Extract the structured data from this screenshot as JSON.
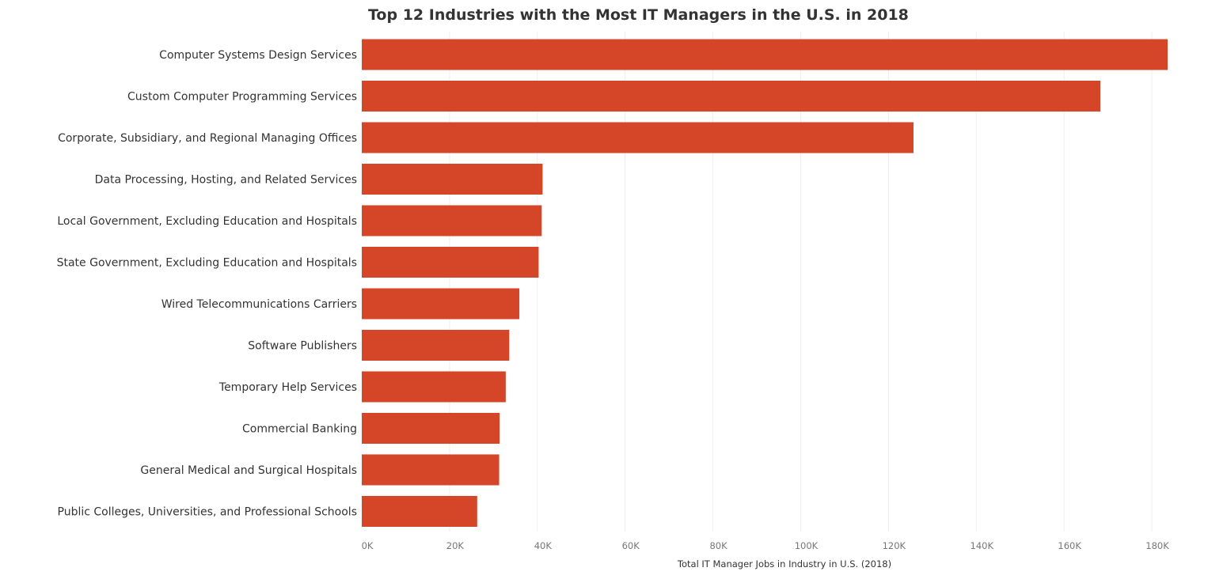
{
  "chart_data": {
    "type": "bar",
    "orientation": "horizontal",
    "title": "Top 12 Industries with the Most IT Managers in the U.S. in 2018",
    "xlabel": "Total IT Manager Jobs in Industry in U.S. (2018)",
    "ylabel": "",
    "categories": [
      "Computer Systems Design Services",
      "Custom Computer Programming Services",
      "Corporate, Subsidiary, and Regional Managing Offices",
      "Data Processing, Hosting, and Related Services",
      "Local Government, Excluding Education and Hospitals",
      "State Government, Excluding Education and Hospitals",
      "Wired Telecommunications Carriers",
      "Software Publishers",
      "Temporary Help Services",
      "Commercial Banking",
      "General Medical and Surgical Hospitals",
      "Public Colleges, Universities, and Professional Schools"
    ],
    "values": [
      183600,
      168300,
      125700,
      41200,
      41000,
      40300,
      35900,
      33600,
      32800,
      31400,
      31300,
      26300
    ],
    "xlim": [
      0,
      190000
    ],
    "xticks": [
      0,
      20000,
      40000,
      60000,
      80000,
      100000,
      120000,
      140000,
      160000,
      180000
    ],
    "xtick_labels": [
      "0K",
      "20K",
      "40K",
      "60K",
      "80K",
      "100K",
      "120K",
      "140K",
      "160K",
      "180K"
    ],
    "grid": "vertical",
    "legend": "none",
    "bar_color": "#d44627"
  }
}
